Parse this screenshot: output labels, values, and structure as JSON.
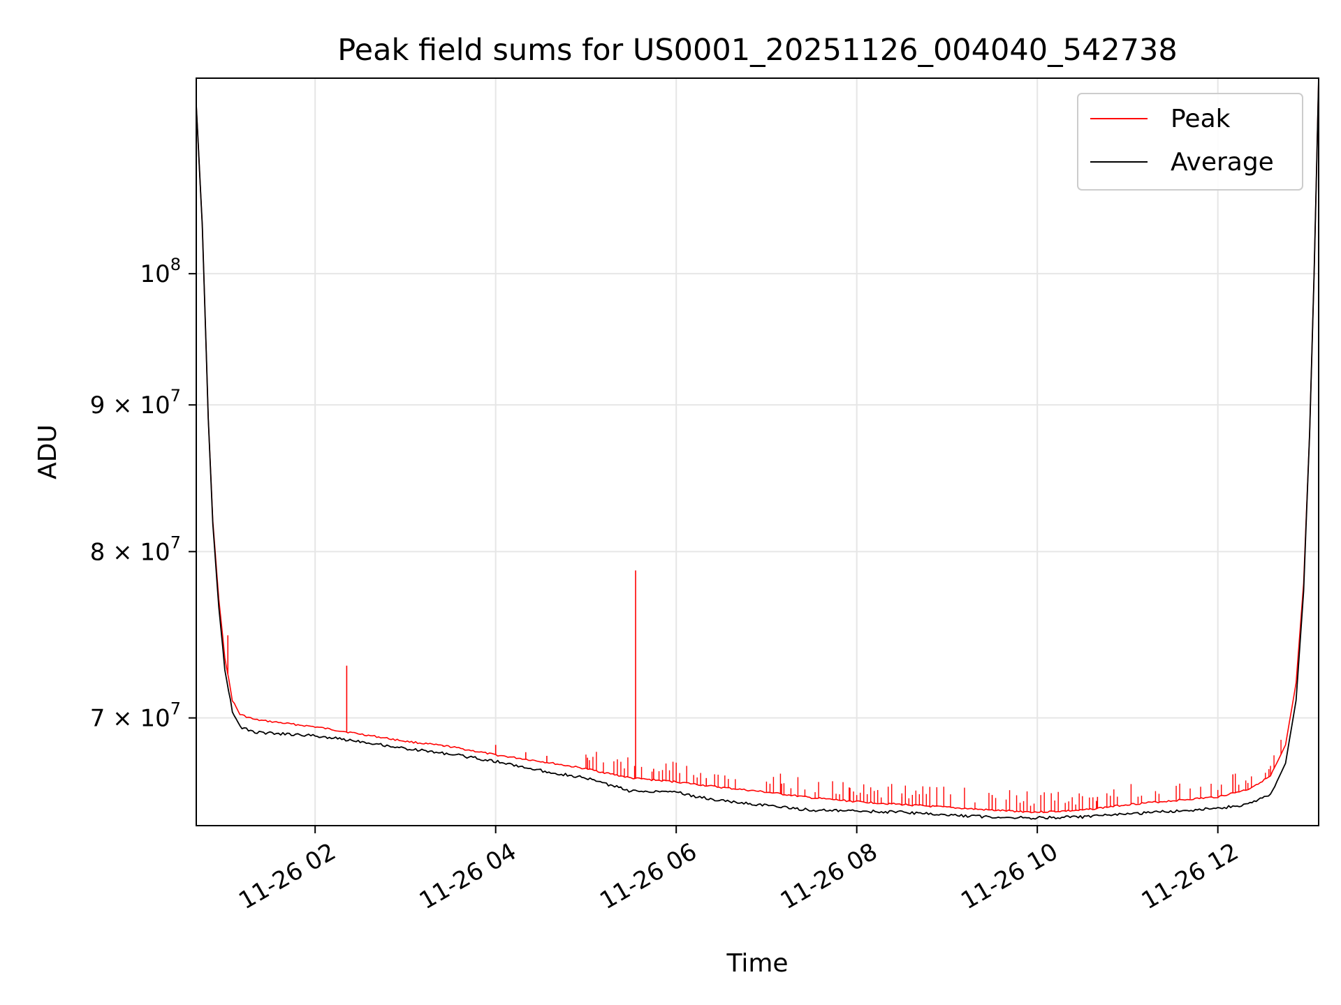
{
  "chart_data": {
    "type": "line",
    "title": "Peak field sums for US0001_20251126_004040_542738",
    "xlabel": "Time",
    "ylabel": "ADU",
    "x_scale": "time",
    "y_scale": "log",
    "xlim": [
      "2025-11-26 00:41",
      "2025-11-26 13:07"
    ],
    "ylim": [
      64200000,
      117000000
    ],
    "x_ticks": [
      {
        "value": "2025-11-26 02:00",
        "label": "11-26 02"
      },
      {
        "value": "2025-11-26 04:00",
        "label": "11-26 04"
      },
      {
        "value": "2025-11-26 06:00",
        "label": "11-26 06"
      },
      {
        "value": "2025-11-26 08:00",
        "label": "11-26 08"
      },
      {
        "value": "2025-11-26 10:00",
        "label": "11-26 10"
      },
      {
        "value": "2025-11-26 12:00",
        "label": "11-26 12"
      }
    ],
    "y_ticks": [
      {
        "value": 70000000,
        "base": "7",
        "exp": "7"
      },
      {
        "value": 80000000,
        "base": "8",
        "exp": "7"
      },
      {
        "value": 90000000,
        "base": "9",
        "exp": "7"
      },
      {
        "value": 100000000,
        "base": "10",
        "exp": "8"
      }
    ],
    "grid": true,
    "legend_position": "top-right",
    "series": [
      {
        "name": "Peak",
        "color": "#ff0000",
        "points": [
          [
            "2025-11-26 00:41",
            114500000
          ],
          [
            "2025-11-26 00:45",
            104000000
          ],
          [
            "2025-11-26 00:49",
            89000000
          ],
          [
            "2025-11-26 00:52",
            82000000
          ],
          [
            "2025-11-26 00:56",
            77000000
          ],
          [
            "2025-11-26 01:00",
            73500000
          ],
          [
            "2025-11-26 01:05",
            71000000
          ],
          [
            "2025-11-26 01:10",
            70200000
          ],
          [
            "2025-11-26 01:20",
            69900000
          ],
          [
            "2025-11-26 01:40",
            69700000
          ],
          [
            "2025-11-26 02:00",
            69500000
          ],
          [
            "2025-11-26 02:30",
            69100000
          ],
          [
            "2025-11-26 03:00",
            68700000
          ],
          [
            "2025-11-26 03:30",
            68400000
          ],
          [
            "2025-11-26 04:00",
            67950000
          ],
          [
            "2025-11-26 04:30",
            67600000
          ],
          [
            "2025-11-26 05:00",
            67200000
          ],
          [
            "2025-11-26 05:30",
            66700000
          ],
          [
            "2025-11-26 06:00",
            66500000
          ],
          [
            "2025-11-26 06:30",
            66200000
          ],
          [
            "2025-11-26 07:00",
            65950000
          ],
          [
            "2025-11-26 07:30",
            65650000
          ],
          [
            "2025-11-26 08:00",
            65450000
          ],
          [
            "2025-11-26 08:30",
            65300000
          ],
          [
            "2025-11-26 09:00",
            65150000
          ],
          [
            "2025-11-26 09:30",
            65000000
          ],
          [
            "2025-11-26 10:00",
            64900000
          ],
          [
            "2025-11-26 10:30",
            65000000
          ],
          [
            "2025-11-26 11:00",
            65300000
          ],
          [
            "2025-11-26 11:30",
            65500000
          ],
          [
            "2025-11-26 12:00",
            65700000
          ],
          [
            "2025-11-26 12:20",
            66100000
          ],
          [
            "2025-11-26 12:35",
            66800000
          ],
          [
            "2025-11-26 12:45",
            68500000
          ],
          [
            "2025-11-26 12:52",
            72000000
          ],
          [
            "2025-11-26 12:57",
            78000000
          ],
          [
            "2025-11-26 13:01",
            88000000
          ],
          [
            "2025-11-26 13:04",
            100000000
          ],
          [
            "2025-11-26 13:07",
            117000000
          ]
        ],
        "spikes": [
          [
            "2025-11-26 01:02",
            74800000
          ],
          [
            "2025-11-26 02:21",
            73000000
          ],
          [
            "2025-11-26 03:25",
            68400000
          ],
          [
            "2025-11-26 04:00",
            68500000
          ],
          [
            "2025-11-26 04:20",
            68100000
          ],
          [
            "2025-11-26 04:34",
            67900000
          ],
          [
            "2025-11-26 05:01",
            67800000
          ],
          [
            "2025-11-26 05:33",
            78800000
          ],
          [
            "2025-11-26 05:45",
            67200000
          ],
          [
            "2025-11-26 06:20",
            66700000
          ],
          [
            "2025-11-26 07:10",
            66400000
          ],
          [
            "2025-11-26 07:55",
            66200000
          ],
          [
            "2025-11-26 08:30",
            65700000
          ],
          [
            "2025-11-26 09:30",
            65800000
          ],
          [
            "2025-11-26 10:40",
            65700000
          ],
          [
            "2025-11-26 12:10",
            66900000
          ]
        ]
      },
      {
        "name": "Average",
        "color": "#000000",
        "points": [
          [
            "2025-11-26 00:41",
            114500000
          ],
          [
            "2025-11-26 00:45",
            104000000
          ],
          [
            "2025-11-26 00:49",
            89000000
          ],
          [
            "2025-11-26 00:52",
            81800000
          ],
          [
            "2025-11-26 00:56",
            76500000
          ],
          [
            "2025-11-26 01:00",
            72800000
          ],
          [
            "2025-11-26 01:05",
            70400000
          ],
          [
            "2025-11-26 01:10",
            69500000
          ],
          [
            "2025-11-26 01:20",
            69200000
          ],
          [
            "2025-11-26 01:40",
            69100000
          ],
          [
            "2025-11-26 02:00",
            69000000
          ],
          [
            "2025-11-26 02:30",
            68700000
          ],
          [
            "2025-11-26 03:00",
            68300000
          ],
          [
            "2025-11-26 03:30",
            68000000
          ],
          [
            "2025-11-26 04:00",
            67600000
          ],
          [
            "2025-11-26 04:30",
            67100000
          ],
          [
            "2025-11-26 05:00",
            66700000
          ],
          [
            "2025-11-26 05:30",
            66000000
          ],
          [
            "2025-11-26 06:00",
            66000000
          ],
          [
            "2025-11-26 06:10",
            65750000
          ],
          [
            "2025-11-26 06:30",
            65500000
          ],
          [
            "2025-11-26 07:00",
            65250000
          ],
          [
            "2025-11-26 07:30",
            65000000
          ],
          [
            "2025-11-26 08:00",
            64950000
          ],
          [
            "2025-11-26 08:30",
            64900000
          ],
          [
            "2025-11-26 09:00",
            64750000
          ],
          [
            "2025-11-26 09:30",
            64650000
          ],
          [
            "2025-11-26 10:00",
            64600000
          ],
          [
            "2025-11-26 10:30",
            64650000
          ],
          [
            "2025-11-26 11:00",
            64800000
          ],
          [
            "2025-11-26 11:30",
            64950000
          ],
          [
            "2025-11-26 12:00",
            65100000
          ],
          [
            "2025-11-26 12:20",
            65300000
          ],
          [
            "2025-11-26 12:35",
            65800000
          ],
          [
            "2025-11-26 12:45",
            67500000
          ],
          [
            "2025-11-26 12:52",
            71000000
          ],
          [
            "2025-11-26 12:57",
            77500000
          ],
          [
            "2025-11-26 13:01",
            88000000
          ],
          [
            "2025-11-26 13:04",
            100000000
          ],
          [
            "2025-11-26 13:07",
            117000000
          ]
        ]
      }
    ]
  }
}
